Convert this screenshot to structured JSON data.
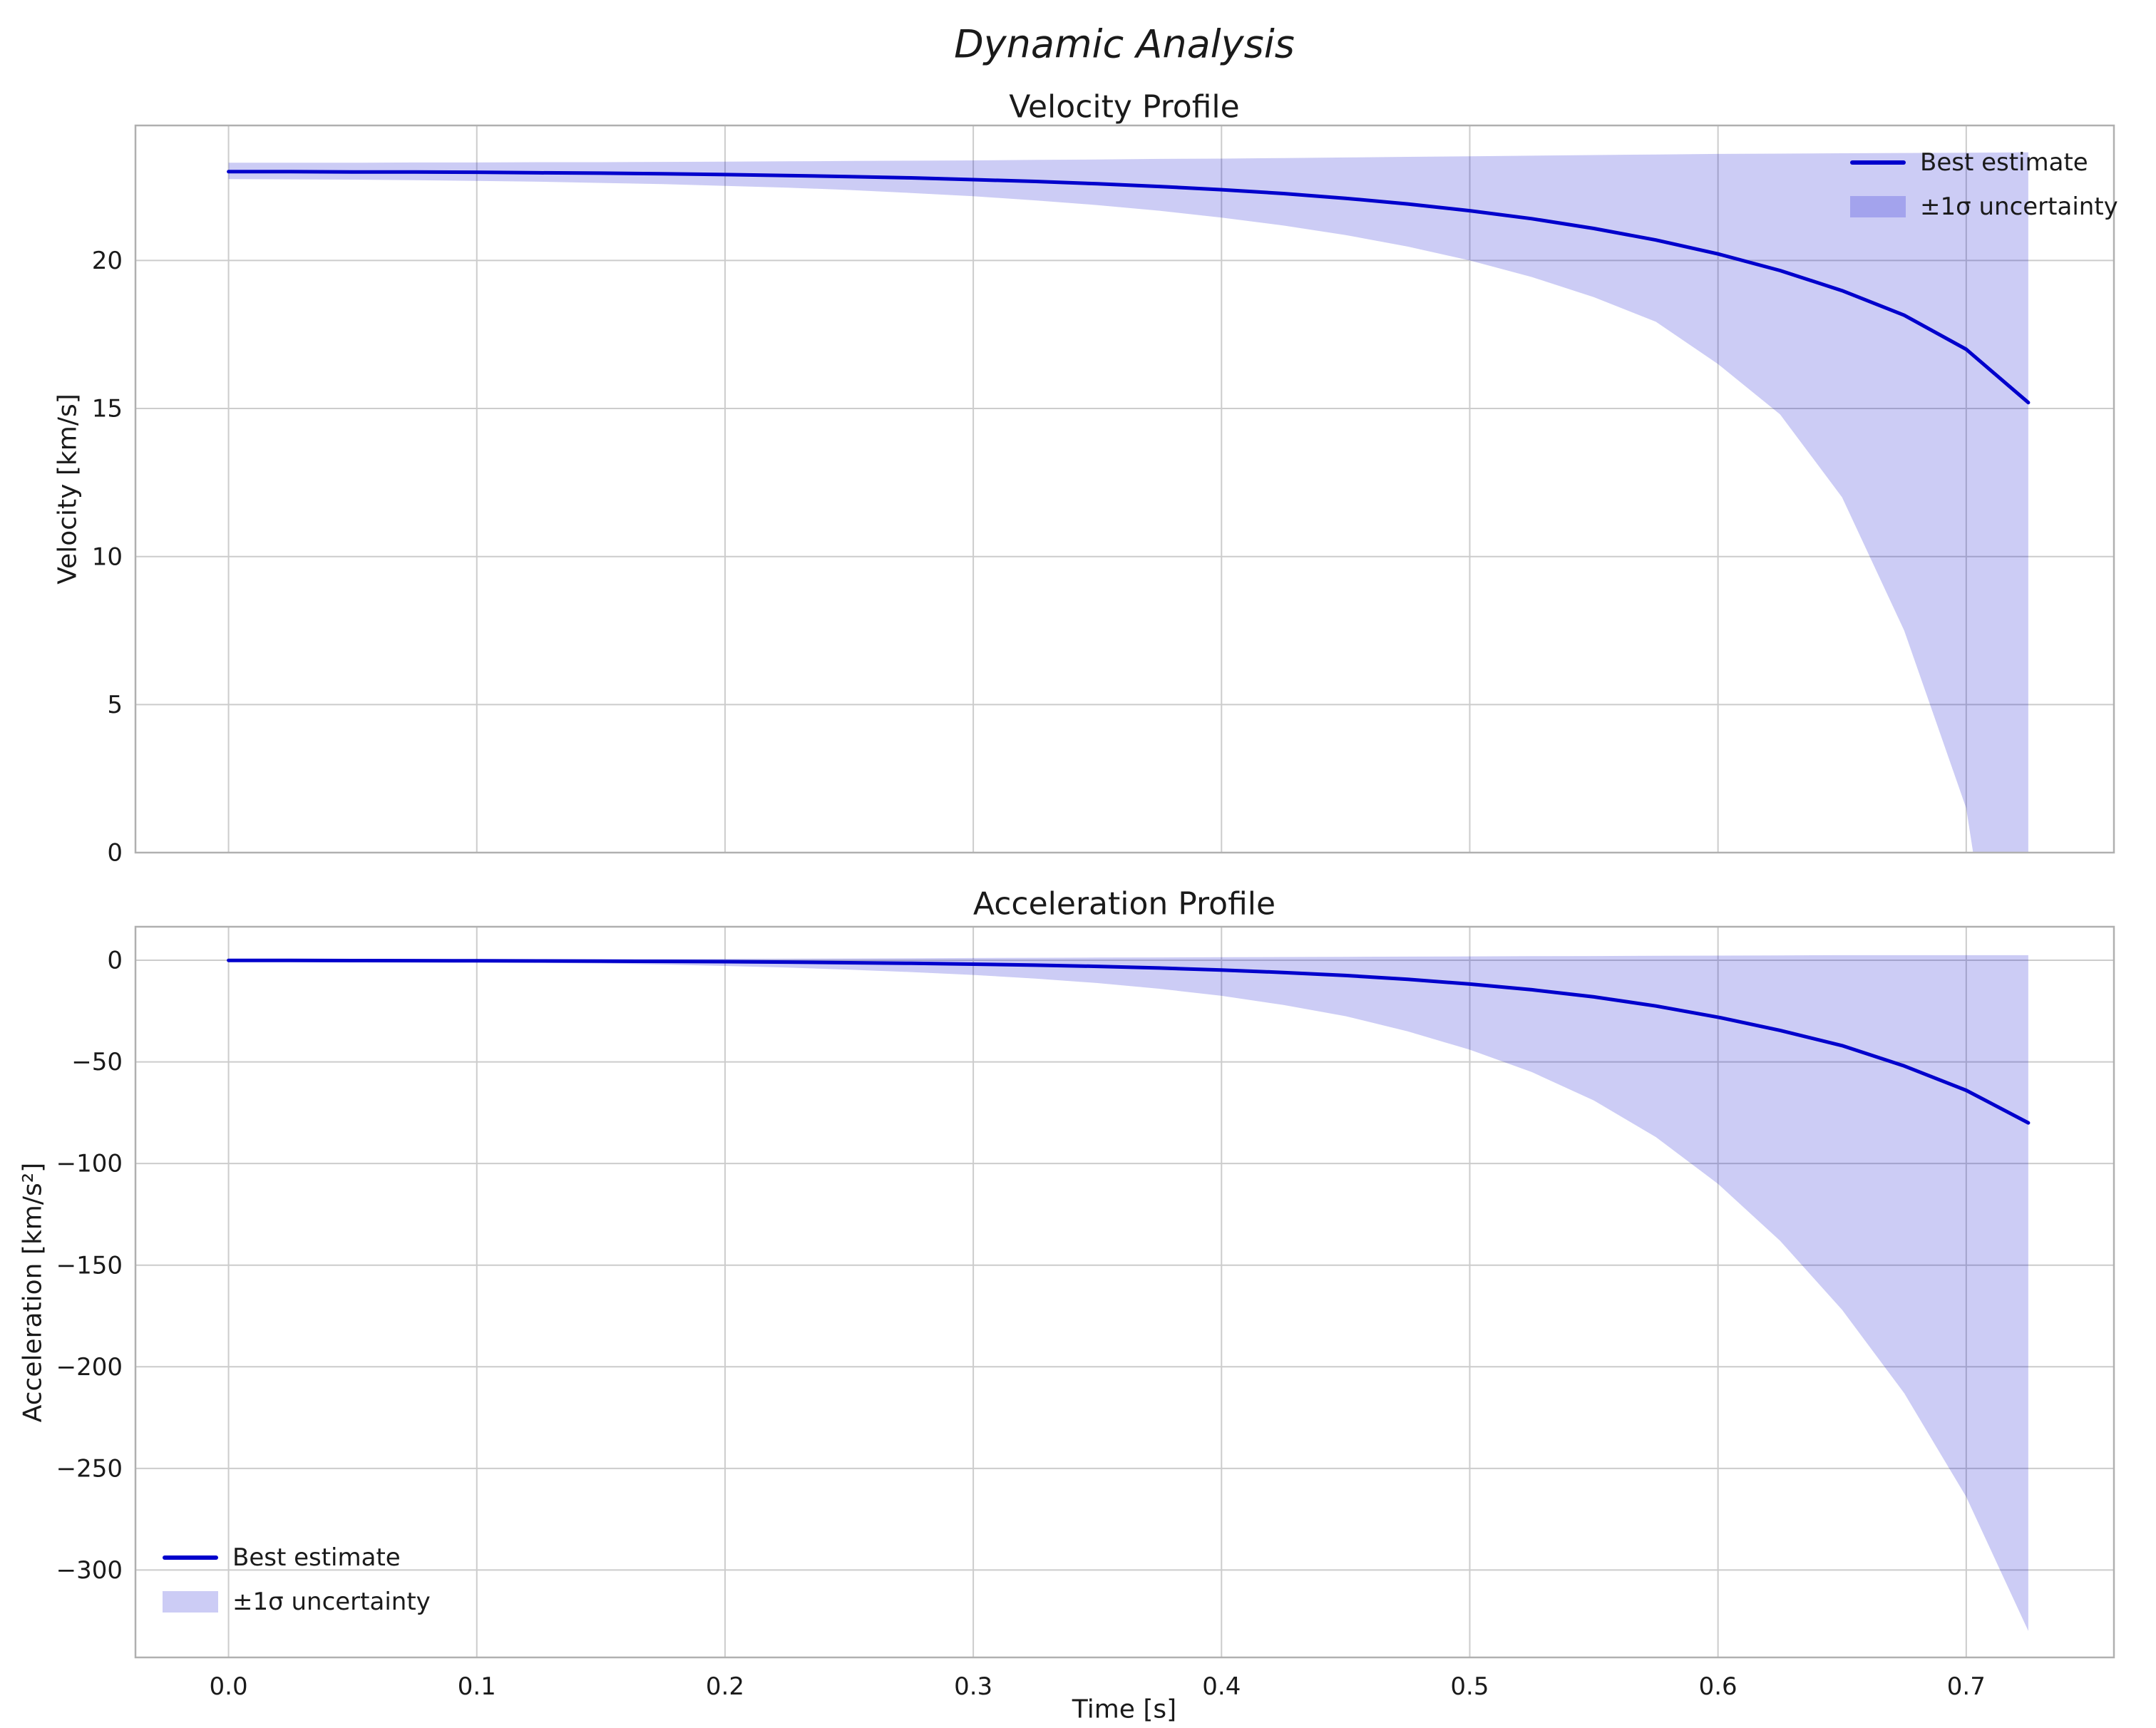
{
  "figure": {
    "suptitle": "Dynamic Analysis",
    "xlabel": "Time [s]"
  },
  "legend": {
    "line_label": "Best estimate",
    "band_label": "±1σ uncertainty"
  },
  "colors": {
    "line": "#0000cc",
    "band_fill": "rgba(0,0,204,0.2)",
    "grid": "#cccccc",
    "spine": "#b0b0b0",
    "text": "#1a1a1a"
  },
  "chart_data": [
    {
      "type": "line",
      "title": "Velocity Profile",
      "ylabel": "Velocity [km/s]",
      "xlim": [
        -0.0375,
        0.7595
      ],
      "ylim": [
        0,
        24.56
      ],
      "xticks": [
        0.0,
        0.1,
        0.2,
        0.3,
        0.4,
        0.5,
        0.6,
        0.7
      ],
      "yticks": [
        0,
        5,
        10,
        15,
        20
      ],
      "legend_position": "upper right",
      "x": [
        0,
        0.025,
        0.05,
        0.075,
        0.1,
        0.125,
        0.15,
        0.175,
        0.2,
        0.225,
        0.25,
        0.275,
        0.3,
        0.325,
        0.35,
        0.375,
        0.4,
        0.425,
        0.45,
        0.475,
        0.5,
        0.525,
        0.55,
        0.575,
        0.6,
        0.625,
        0.65,
        0.675,
        0.7,
        0.725
      ],
      "series": [
        {
          "name": "Best estimate",
          "y": [
            23.0,
            23.0,
            22.99,
            22.99,
            22.98,
            22.96,
            22.95,
            22.93,
            22.9,
            22.87,
            22.83,
            22.79,
            22.73,
            22.67,
            22.59,
            22.5,
            22.39,
            22.26,
            22.1,
            21.91,
            21.68,
            21.41,
            21.08,
            20.69,
            20.22,
            19.66,
            18.98,
            18.15,
            17.0,
            15.2
          ]
        }
      ],
      "band": {
        "name": "±1σ uncertainty",
        "lower": [
          22.75,
          22.74,
          22.73,
          22.71,
          22.69,
          22.66,
          22.62,
          22.58,
          22.52,
          22.46,
          22.38,
          22.28,
          22.17,
          22.03,
          21.87,
          21.68,
          21.45,
          21.18,
          20.86,
          20.47,
          20.0,
          19.44,
          18.76,
          17.93,
          16.5,
          14.8,
          12.0,
          7.5,
          1.5,
          -12.0
        ],
        "upper": [
          23.3,
          23.3,
          23.3,
          23.31,
          23.31,
          23.32,
          23.32,
          23.33,
          23.34,
          23.35,
          23.36,
          23.37,
          23.38,
          23.4,
          23.41,
          23.43,
          23.44,
          23.46,
          23.48,
          23.5,
          23.52,
          23.54,
          23.56,
          23.58,
          23.6,
          23.61,
          23.62,
          23.63,
          23.64,
          23.65
        ]
      }
    },
    {
      "type": "line",
      "title": "Acceleration Profile",
      "ylabel": "Acceleration [km/s²]",
      "xlabel": "Time [s]",
      "xlim": [
        -0.0375,
        0.7595
      ],
      "ylim": [
        -343,
        16.5
      ],
      "xticks": [
        0.0,
        0.1,
        0.2,
        0.3,
        0.4,
        0.5,
        0.6,
        0.7
      ],
      "yticks": [
        0,
        -50,
        -100,
        -150,
        -200,
        -250,
        -300
      ],
      "legend_position": "lower left",
      "x": [
        0,
        0.025,
        0.05,
        0.075,
        0.1,
        0.125,
        0.15,
        0.175,
        0.2,
        0.225,
        0.25,
        0.275,
        0.3,
        0.325,
        0.35,
        0.375,
        0.4,
        0.425,
        0.45,
        0.475,
        0.5,
        0.525,
        0.55,
        0.575,
        0.6,
        0.625,
        0.65,
        0.675,
        0.7,
        0.725
      ],
      "series": [
        {
          "name": "Best estimate",
          "y": [
            -0.05,
            -0.1,
            -0.15,
            -0.2,
            -0.25,
            -0.35,
            -0.45,
            -0.55,
            -0.7,
            -0.9,
            -1.2,
            -1.5,
            -1.9,
            -2.4,
            -3.0,
            -3.8,
            -4.8,
            -6.0,
            -7.5,
            -9.4,
            -11.7,
            -14.5,
            -18.0,
            -22.5,
            -28.0,
            -34.5,
            -42.0,
            -52.0,
            -64.0,
            -80.0
          ]
        }
      ],
      "band": {
        "name": "±1σ uncertainty",
        "lower": [
          -0.3,
          -0.4,
          -0.5,
          -0.7,
          -0.9,
          -1.2,
          -1.6,
          -2.1,
          -2.8,
          -3.6,
          -4.6,
          -5.8,
          -7.2,
          -9.0,
          -11.2,
          -14.0,
          -17.5,
          -22.0,
          -27.5,
          -35.0,
          -44.0,
          -55.0,
          -69.0,
          -87.0,
          -110.0,
          -138.0,
          -172.0,
          -213.0,
          -264.0,
          -330.0
        ],
        "upper": [
          0.2,
          0.25,
          0.3,
          0.35,
          0.4,
          0.45,
          0.5,
          0.6,
          0.7,
          0.8,
          0.9,
          1.0,
          1.1,
          1.2,
          1.3,
          1.4,
          1.5,
          1.6,
          1.7,
          1.8,
          1.9,
          2.0,
          2.1,
          2.2,
          2.3,
          2.4,
          2.5,
          2.5,
          2.5,
          2.5
        ]
      }
    }
  ]
}
